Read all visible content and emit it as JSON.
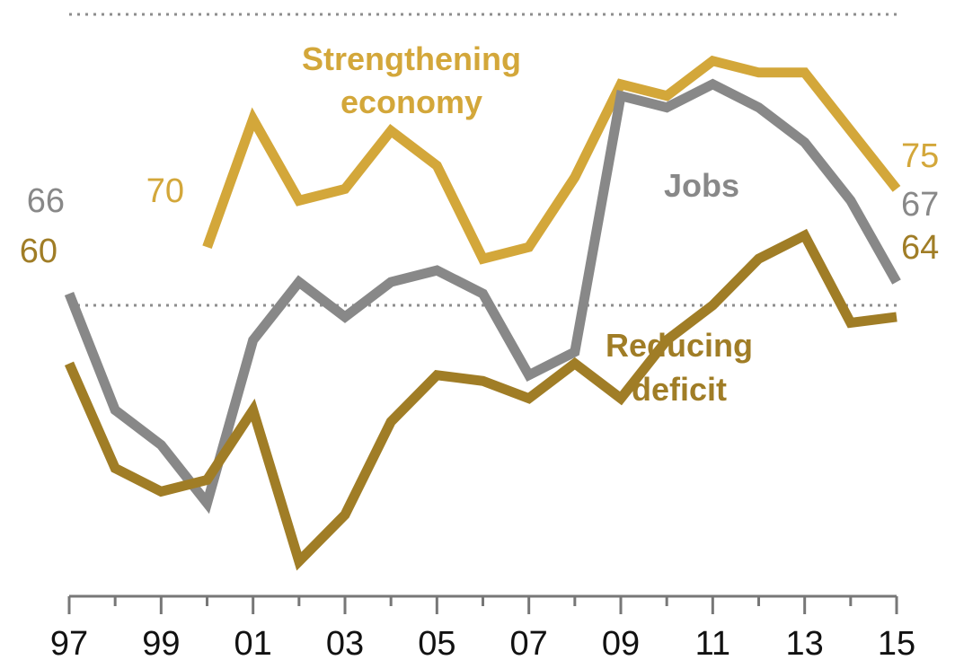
{
  "chart_data": {
    "type": "line",
    "x_ticks": [
      "97",
      "99",
      "01",
      "03",
      "05",
      "07",
      "09",
      "11",
      "13",
      "15"
    ],
    "x": [
      1997,
      1998,
      1999,
      2000,
      2001,
      2002,
      2003,
      2004,
      2005,
      2006,
      2007,
      2008,
      2009,
      2010,
      2011,
      2012,
      2013,
      2014,
      2015
    ],
    "xlim": [
      1997,
      2015
    ],
    "ylim": [
      40,
      90
    ],
    "grid": false,
    "legend": "none",
    "series": [
      {
        "name": "Strengthening economy",
        "color": "#d3a73a",
        "x": [
          2000,
          2001,
          2002,
          2003,
          2004,
          2005,
          2006,
          2007,
          2008,
          2009,
          2010,
          2011,
          2012,
          2013,
          2014,
          2015
        ],
        "values": [
          70,
          81,
          74,
          75,
          80,
          77,
          69,
          70,
          76,
          84,
          83,
          86,
          85,
          85,
          80,
          75
        ],
        "label_first": "70",
        "label_last": "75"
      },
      {
        "name": "Jobs",
        "color": "#888888",
        "x": [
          1997,
          1998,
          1999,
          2000,
          2001,
          2002,
          2003,
          2004,
          2005,
          2006,
          2007,
          2008,
          2009,
          2010,
          2011,
          2012,
          2013,
          2014,
          2015
        ],
        "values": [
          66,
          56,
          53,
          48,
          62,
          67,
          64,
          67,
          68,
          66,
          59,
          61,
          83,
          82,
          84,
          82,
          79,
          74,
          67
        ],
        "label_first": "66",
        "label_last": "67"
      },
      {
        "name": "Reducing deficit",
        "color": "#a07d26",
        "x": [
          1997,
          1998,
          1999,
          2000,
          2001,
          2002,
          2003,
          2004,
          2005,
          2006,
          2007,
          2008,
          2009,
          2010,
          2011,
          2012,
          2013,
          2014,
          2015
        ],
        "values": [
          60,
          51,
          49,
          50,
          56,
          43,
          47,
          55,
          59,
          58.5,
          57,
          60,
          57,
          62,
          65,
          69,
          71,
          63.5,
          64
        ],
        "label_first": "60",
        "label_last": "64"
      }
    ],
    "annotations": [
      {
        "text": "Strengthening",
        "series": "Strengthening economy",
        "line": 1
      },
      {
        "text": "economy",
        "series": "Strengthening economy",
        "line": 2
      },
      {
        "text": "Jobs",
        "series": "Jobs",
        "line": 1
      },
      {
        "text": "Reducing",
        "series": "Reducing deficit",
        "line": 1
      },
      {
        "text": "deficit",
        "series": "Reducing deficit",
        "line": 2
      }
    ]
  }
}
